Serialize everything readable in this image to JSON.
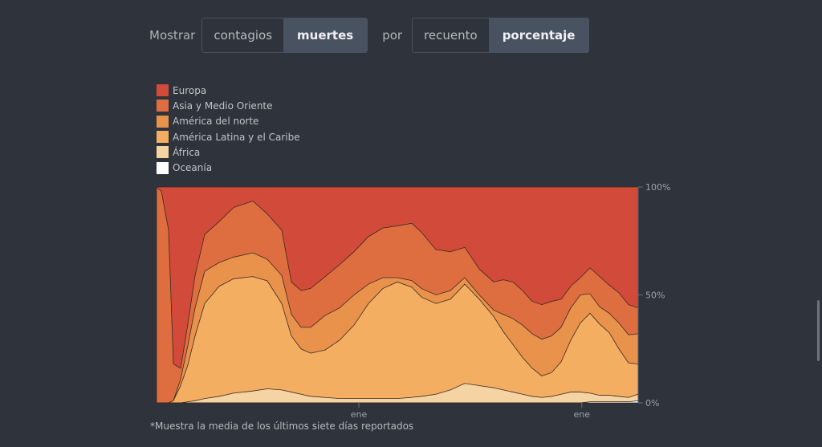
{
  "controls": {
    "show_label": "Mostrar",
    "metric_options": [
      "contagios",
      "muertes"
    ],
    "metric_selected": "muertes",
    "by_label": "por",
    "mode_options": [
      "recuento",
      "porcentaje"
    ],
    "mode_selected": "porcentaje"
  },
  "footnote": "*Muestra la media de los últimos siete días reportados",
  "colors": {
    "background": "#2e333c",
    "series": [
      "#d14a3a",
      "#de6e3f",
      "#e8924c",
      "#f4ae62",
      "#f5d3a3",
      "#ffffff"
    ]
  },
  "chart_data": {
    "type": "area",
    "stacked": true,
    "normalized": true,
    "title": "",
    "xlabel": "",
    "ylabel": "",
    "ylim": [
      0,
      100
    ],
    "y_ticks": [
      0,
      50,
      100
    ],
    "y_tick_labels": [
      "0%",
      "50%",
      "100%"
    ],
    "x_tick_labels": [
      {
        "label": "ene",
        "x": 0.42
      },
      {
        "label": "ene",
        "x": 0.883
      }
    ],
    "legend_position": "top-left",
    "x": [
      0,
      0.01,
      0.025,
      0.035,
      0.05,
      0.065,
      0.08,
      0.1,
      0.13,
      0.16,
      0.2,
      0.23,
      0.26,
      0.28,
      0.3,
      0.32,
      0.35,
      0.38,
      0.41,
      0.44,
      0.47,
      0.5,
      0.53,
      0.55,
      0.58,
      0.61,
      0.64,
      0.67,
      0.7,
      0.72,
      0.74,
      0.76,
      0.78,
      0.8,
      0.82,
      0.84,
      0.86,
      0.88,
      0.9,
      0.92,
      0.94,
      0.96,
      0.98,
      1.0
    ],
    "series": [
      {
        "name": "Oceanía",
        "values": [
          0,
          0,
          0,
          0,
          0,
          0,
          0,
          0,
          0,
          0,
          0,
          0,
          0,
          0,
          0,
          0,
          0,
          0,
          0,
          0,
          0,
          0,
          0,
          0,
          0,
          0,
          0,
          0,
          0,
          0,
          0,
          0,
          0,
          0,
          0,
          0,
          0,
          0,
          0.5,
          0.5,
          0.5,
          0.5,
          0.5,
          1
        ]
      },
      {
        "name": "África",
        "values": [
          0,
          0,
          0,
          0,
          0,
          0.5,
          1,
          2,
          3,
          4.5,
          5.5,
          6.5,
          6,
          5,
          4,
          3,
          2.5,
          2,
          2,
          2,
          2,
          2,
          2.5,
          3,
          4,
          6,
          9,
          8,
          7,
          6,
          5,
          4,
          3,
          2.5,
          3,
          4,
          5,
          5,
          4,
          3,
          3,
          2.5,
          2,
          3
        ]
      },
      {
        "name": "América Latina y el Caribe",
        "values": [
          0,
          0,
          0,
          1,
          8,
          17,
          30,
          44,
          51,
          53,
          53,
          50,
          40,
          26,
          21,
          20,
          22,
          27,
          34,
          44,
          51,
          54,
          50,
          46,
          42,
          42,
          46,
          40,
          33,
          27,
          22,
          17,
          13,
          10,
          11,
          15,
          24,
          32,
          37,
          33,
          29,
          22,
          16,
          14
        ]
      },
      {
        "name": "América del norte",
        "values": [
          0,
          0,
          0,
          0,
          3,
          9,
          13,
          15,
          11,
          10,
          11,
          10,
          13,
          10,
          10,
          12,
          16,
          15,
          14,
          9,
          5,
          2,
          3,
          4,
          4,
          4,
          3,
          2,
          3,
          8,
          12,
          15,
          16,
          17,
          17,
          16,
          15,
          13,
          9,
          8,
          9,
          12,
          13,
          14
        ]
      },
      {
        "name": "Asia y Medio Oriente",
        "values": [
          100,
          98,
          80,
          17,
          5,
          10,
          15,
          17,
          19,
          23,
          24,
          21,
          21,
          15,
          17,
          18,
          18,
          20,
          20,
          22,
          23,
          24,
          26,
          26,
          21,
          18,
          14,
          12,
          13,
          16,
          17,
          16,
          15,
          16,
          16,
          13,
          10,
          8,
          12,
          14,
          13,
          14,
          14,
          12
        ]
      },
      {
        "name": "Europa",
        "values": [
          0,
          2,
          20,
          82,
          84,
          63.5,
          41,
          22,
          16,
          9.5,
          6.5,
          12.5,
          20,
          44,
          48,
          47,
          41.5,
          36,
          30,
          23,
          19,
          18,
          16.5,
          21,
          29,
          30,
          28,
          38,
          44,
          43,
          44,
          48,
          53,
          54.5,
          53,
          52,
          46,
          42,
          37.5,
          41.5,
          45.5,
          49,
          54.5,
          56
        ]
      }
    ]
  }
}
